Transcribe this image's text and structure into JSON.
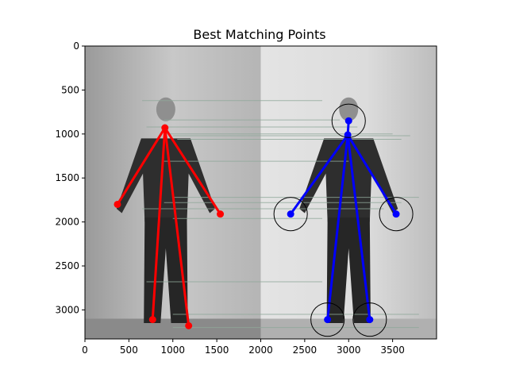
{
  "chart_data": {
    "type": "scatter",
    "title": "Best Matching Points",
    "xlabel": "",
    "ylabel": "",
    "xlim": [
      0,
      4000
    ],
    "ylim": [
      3330,
      0
    ],
    "x_ticks": [
      0,
      500,
      1000,
      1500,
      2000,
      2500,
      3000,
      3500
    ],
    "y_ticks": [
      0,
      500,
      1000,
      1500,
      2000,
      2500,
      3000
    ],
    "grid": false,
    "legend": "none",
    "background_image": "side-by-side grayscale photos of a standing man",
    "colors": {
      "left_skeleton": "#ff0000",
      "right_skeleton": "#0000ff",
      "circles": "#000000",
      "match_lines": "#8fa89a"
    },
    "left_skeleton": {
      "neck": [
        910,
        930
      ],
      "points": [
        [
          370,
          1800
        ],
        [
          1540,
          1910
        ],
        [
          770,
          3110
        ],
        [
          1180,
          3180
        ]
      ]
    },
    "right_skeleton": {
      "neck": [
        2990,
        1010
      ],
      "head": [
        3000,
        850
      ],
      "points": [
        [
          2340,
          1910
        ],
        [
          3540,
          1910
        ],
        [
          2760,
          3110
        ],
        [
          3240,
          3110
        ]
      ]
    },
    "circles": [
      {
        "center": [
          3000,
          850
        ],
        "radius": 190
      },
      {
        "center": [
          2340,
          1910
        ],
        "radius": 190
      },
      {
        "center": [
          3540,
          1910
        ],
        "radius": 190
      },
      {
        "center": [
          2760,
          3110
        ],
        "radius": 190
      },
      {
        "center": [
          3240,
          3110
        ],
        "radius": 190
      }
    ],
    "matching_lines": [
      [
        [
          650,
          620
        ],
        [
          2700,
          620
        ]
      ],
      [
        [
          900,
          840
        ],
        [
          2900,
          840
        ]
      ],
      [
        [
          700,
          920
        ],
        [
          3100,
          920
        ]
      ],
      [
        [
          900,
          1000
        ],
        [
          3500,
          1000
        ]
      ],
      [
        [
          1000,
          1020
        ],
        [
          3700,
          1020
        ]
      ],
      [
        [
          1050,
          1060
        ],
        [
          3600,
          1060
        ]
      ],
      [
        [
          900,
          1310
        ],
        [
          3000,
          1310
        ]
      ],
      [
        [
          1000,
          1720
        ],
        [
          3800,
          1720
        ]
      ],
      [
        [
          900,
          1780
        ],
        [
          3600,
          1780
        ]
      ],
      [
        [
          650,
          1850
        ],
        [
          3400,
          1850
        ]
      ],
      [
        [
          1000,
          1960
        ],
        [
          2700,
          1960
        ]
      ],
      [
        [
          700,
          2680
        ],
        [
          2700,
          2680
        ]
      ],
      [
        [
          1000,
          3050
        ],
        [
          3800,
          3050
        ]
      ],
      [
        [
          1000,
          3200
        ],
        [
          3800,
          3200
        ]
      ]
    ]
  }
}
